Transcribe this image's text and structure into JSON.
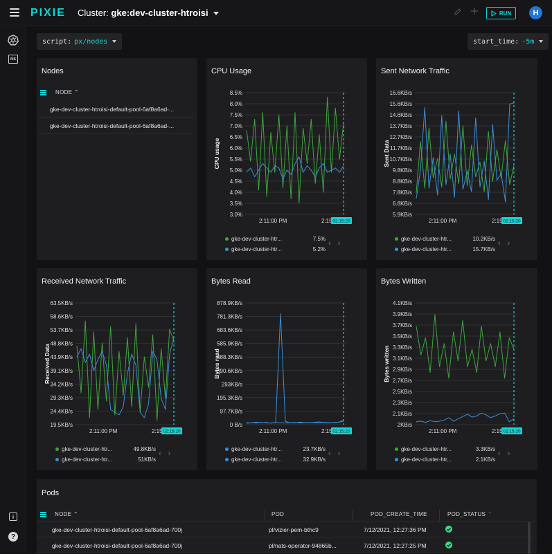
{
  "app": {
    "logo": "PIXIE",
    "cluster_label": "Cluster:",
    "cluster_name": "gke:dev-cluster-htroisi",
    "run_label": "RUN",
    "avatar_initial": "H",
    "accent_color": "#12d6d6"
  },
  "rail": {
    "items": [
      {
        "name": "kubernetes-icon"
      },
      {
        "name": "namespace-icon",
        "label": "ns"
      }
    ],
    "bottom": [
      {
        "name": "info-icon",
        "label": "i"
      },
      {
        "name": "help-icon",
        "label": "?"
      }
    ]
  },
  "selectors": {
    "script_label": "script:",
    "script_value": "px/nodes",
    "time_label": "start_time:",
    "time_value": "-5m"
  },
  "nodes_panel": {
    "title": "Nodes",
    "column": "NODE",
    "rows": [
      "gke-dev-cluster-htroisi-default-pool-6af8a6ad-...",
      "gke-dev-cluster-htroisi-default-pool-6af8a6ad-..."
    ]
  },
  "charts": [
    {
      "id": "cpu",
      "title": "CPU Usage",
      "ylabel": "CPU usage",
      "yticks": [
        "8.5%",
        "8.0%",
        "7.5%",
        "7.0%",
        "6.5%",
        "6.0%",
        "5.5%",
        "5.0%",
        "4.5%",
        "4.0%",
        "3.5%",
        "3.0%"
      ],
      "xticks": [
        "2:11:00 PM",
        "2:15"
      ],
      "cursor_label": "02:15:20",
      "legend": [
        {
          "name": "gke-dev-cluster-htr...",
          "value": "7.5%",
          "color": "#3ca83c"
        },
        {
          "name": "gke-dev-cluster-htr...",
          "value": "5.2%",
          "color": "#3b8fd8"
        }
      ]
    },
    {
      "id": "sent",
      "title": "Sent Network Traffic",
      "ylabel": "Sent Data",
      "yticks": [
        "16.6KB/s",
        "15.6KB/s",
        "14.6KB/s",
        "13.7KB/s",
        "12.7KB/s",
        "11.7KB/s",
        "10.7KB/s",
        "9.8KB/s",
        "8.8KB/s",
        "7.8KB/s",
        "6.8KB/s",
        "5.9KB/s"
      ],
      "xticks": [
        "2:11:00 PM",
        "2:15"
      ],
      "cursor_label": "02:15:20",
      "legend": [
        {
          "name": "gke-dev-cluster-htr...",
          "value": "10.2KB/s",
          "color": "#3ca83c"
        },
        {
          "name": "gke-dev-cluster-htr...",
          "value": "15.7KB/s",
          "color": "#3b8fd8"
        }
      ]
    },
    {
      "id": "recv",
      "title": "Received Network Traffic",
      "ylabel": "Received Data",
      "yticks": [
        "63.5KB/s",
        "58.6KB/s",
        "53.7KB/s",
        "48.8KB/s",
        "43.9KB/s",
        "39.1KB/s",
        "34.2KB/s",
        "29.3KB/s",
        "24.4KB/s",
        "19.5KB/s"
      ],
      "xticks": [
        "2:11:00 PM",
        "2:15"
      ],
      "cursor_label": "02:15:20",
      "legend": [
        {
          "name": "gke-dev-cluster-htr...",
          "value": "49.8KB/s",
          "color": "#3ca83c"
        },
        {
          "name": "gke-dev-cluster-htr...",
          "value": "51KB/s",
          "color": "#3b8fd8"
        }
      ]
    },
    {
      "id": "bread",
      "title": "Bytes Read",
      "ylabel": "Bytes read",
      "yticks": [
        "878.9KB/s",
        "781.3KB/s",
        "683.6KB/s",
        "585.9KB/s",
        "488.3KB/s",
        "390.6KB/s",
        "293KB/s",
        "195.3KB/s",
        "97.7KB/s",
        "0 B/s"
      ],
      "xticks": [
        "2:11:00 PM",
        "2:15"
      ],
      "cursor_label": "02:15:20",
      "legend": [
        {
          "name": "gke-dev-cluster-htr...",
          "value": "23.7KB/s",
          "color": "#3b8fd8"
        },
        {
          "name": "gke-dev-cluster-htr...",
          "value": "32.9KB/s",
          "color": "#3b8fd8"
        }
      ]
    },
    {
      "id": "bwrite",
      "title": "Bytes Written",
      "ylabel": "Bytes written",
      "yticks": [
        "4.1KB/s",
        "3.9KB/s",
        "3.7KB/s",
        "3.5KB/s",
        "3.3KB/s",
        "3.1KB/s",
        "2.9KB/s",
        "2.7KB/s",
        "2.5KB/s",
        "2.3KB/s",
        "2.1KB/s",
        "2KB/s"
      ],
      "xticks": [
        "2:11:00 PM",
        "2:15"
      ],
      "cursor_label": "02:15:20",
      "legend": [
        {
          "name": "gke-dev-cluster-htr...",
          "value": "3.3KB/s",
          "color": "#3ca83c"
        },
        {
          "name": "gke-dev-cluster-htr...",
          "value": "2.1KB/s",
          "color": "#3b8fd8"
        }
      ]
    }
  ],
  "chart_data": [
    {
      "type": "line",
      "title": "CPU Usage",
      "ylabel": "CPU usage",
      "ylim": [
        3.0,
        8.5
      ],
      "series": [
        {
          "values": [
            6.8,
            5.4,
            7.3,
            4.1,
            7.6,
            3.8,
            6.7,
            4.9,
            7.5,
            4.2,
            7.0,
            3.7,
            7.6,
            3.5,
            6.9,
            5.3,
            7.3,
            4.4,
            6.6,
            4.0,
            8.3,
            4.9,
            7.8,
            5.5,
            7.1
          ]
        },
        {
          "values": [
            4.9,
            5.1,
            4.7,
            5.0,
            5.3,
            5.1,
            4.9,
            5.2,
            5.1,
            4.6,
            5.0,
            4.8,
            5.3,
            5.6,
            4.9,
            5.2,
            5.0,
            4.7,
            5.1,
            5.3,
            4.9,
            5.0,
            5.1,
            4.9,
            5.2
          ]
        }
      ]
    },
    {
      "type": "line",
      "title": "Sent Network Traffic",
      "ylabel": "Sent Data",
      "ylim": [
        5.9,
        16.6
      ],
      "series": [
        {
          "values": [
            7.8,
            12.3,
            8.2,
            13.5,
            9.1,
            10.8,
            8.3,
            14.1,
            9.0,
            11.2,
            8.6,
            13.7,
            8.4,
            12.0,
            9.2,
            10.5,
            7.9,
            13.2,
            8.8,
            11.6,
            9.1,
            12.4,
            8.5,
            10.2
          ]
        },
        {
          "values": [
            7.3,
            9.8,
            15.3,
            8.2,
            10.9,
            7.6,
            14.6,
            8.5,
            11.2,
            7.4,
            15.0,
            8.1,
            9.7,
            7.9,
            14.4,
            8.3,
            10.6,
            7.2,
            13.8,
            8.9,
            9.5,
            7.0,
            15.6,
            15.7
          ]
        }
      ]
    },
    {
      "type": "line",
      "title": "Received Network Traffic",
      "ylabel": "Received Data",
      "ylim": [
        19.5,
        63.5
      ],
      "series": [
        {
          "values": [
            48,
            31,
            57,
            22,
            53,
            25,
            49,
            28,
            55,
            23,
            46,
            30,
            51,
            26,
            56,
            24,
            44,
            33,
            52,
            21,
            47,
            29,
            54,
            49.8
          ]
        },
        {
          "values": [
            44,
            47,
            42,
            45,
            39,
            43,
            46,
            41,
            25,
            24,
            23,
            26,
            38,
            45,
            41,
            24,
            22,
            27,
            46,
            43,
            29,
            25,
            45,
            51
          ]
        }
      ]
    },
    {
      "type": "line",
      "title": "Bytes Read",
      "ylabel": "Bytes read",
      "ylim": [
        0,
        878.9
      ],
      "series": [
        {
          "values": [
            15,
            12,
            18,
            14,
            16,
            11,
            13,
            800,
            25,
            12,
            14,
            18,
            15,
            13,
            17,
            20,
            14,
            12,
            16,
            18,
            23.7
          ]
        },
        {
          "values": [
            10,
            14,
            12,
            16,
            13,
            11,
            15,
            14,
            12,
            13,
            16,
            12,
            15,
            14,
            13,
            12,
            16,
            14,
            15,
            18,
            32.9
          ]
        }
      ]
    },
    {
      "type": "line",
      "title": "Bytes Written",
      "ylabel": "Bytes written",
      "ylim": [
        2.0,
        4.1
      ],
      "series": [
        {
          "values": [
            3.7,
            3.2,
            3.5,
            2.9,
            3.9,
            3.0,
            3.4,
            2.8,
            3.6,
            3.1,
            3.8,
            3.0,
            3.3,
            2.9,
            3.7,
            3.1,
            3.4,
            3.0,
            3.6,
            2.8,
            3.5,
            3.3
          ]
        },
        {
          "values": [
            2.05,
            2.06,
            2.04,
            2.07,
            2.05,
            2.06,
            2.08,
            2.12,
            2.06,
            2.1,
            2.14,
            2.18,
            2.13,
            2.15,
            2.2,
            2.17,
            2.12,
            2.15,
            2.19,
            2.2,
            2.05,
            2.1
          ]
        }
      ]
    }
  ],
  "pods_panel": {
    "title": "Pods",
    "columns": [
      "NODE",
      "POD",
      "POD_CREATE_TIME",
      "POD_STATUS"
    ],
    "rows": [
      {
        "node": "gke-dev-cluster-htroisi-default-pool-6af8a6ad-700j",
        "pod": "pl/vizier-pem-bthc9",
        "time": "7/12/2021, 12:27:36 PM",
        "status": "ok"
      },
      {
        "node": "gke-dev-cluster-htroisi-default-pool-6af8a6ad-700j",
        "pod": "pl/nats-operator-94865b...",
        "time": "7/12/2021, 12:27:25 PM",
        "status": "ok"
      }
    ]
  }
}
